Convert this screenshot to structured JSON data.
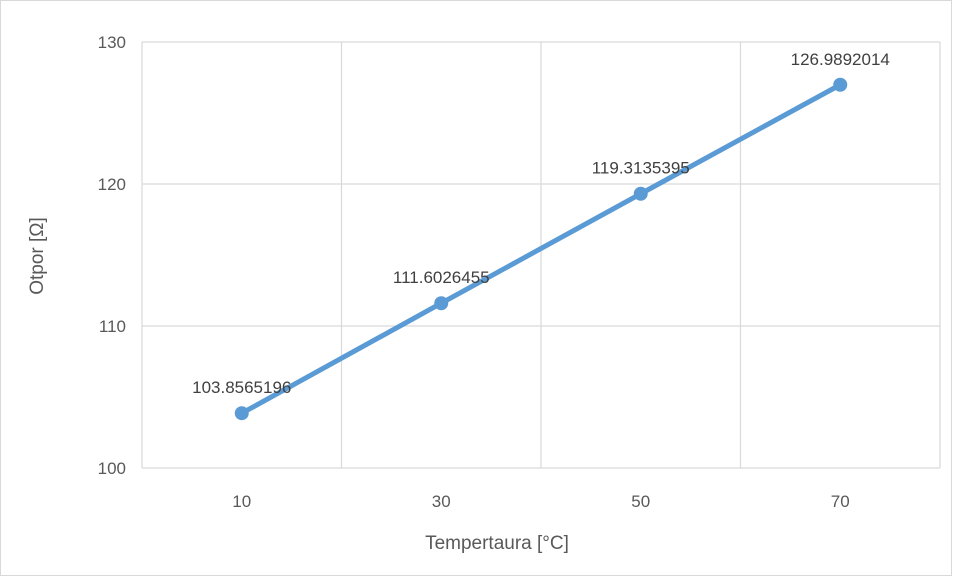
{
  "chart_data": {
    "type": "line",
    "x": [
      10,
      30,
      50,
      70
    ],
    "series": [
      {
        "name": "",
        "values": [
          103.8565196,
          111.6026455,
          119.3135395,
          126.9892014
        ],
        "data_labels": [
          "103.8565196",
          "111.6026455",
          "119.3135395",
          "126.9892014"
        ],
        "color": "#5b9bd5"
      }
    ],
    "title": "",
    "xlabel": "Tempertaura [°C]",
    "ylabel": "Otpor [Ω]",
    "xlim": [
      0,
      80
    ],
    "ylim": [
      100,
      130
    ],
    "x_ticks": [
      10,
      30,
      50,
      70
    ],
    "x_tick_labels": [
      "10",
      "30",
      "50",
      "70"
    ],
    "y_ticks": [
      100,
      110,
      120,
      130
    ],
    "y_tick_labels": [
      "100",
      "110",
      "120",
      "130"
    ],
    "x_gridlines": [
      0,
      20,
      40,
      60,
      80
    ],
    "grid": true,
    "legend": "none",
    "colors": {
      "line": "#5b9bd5",
      "grid": "#d9d9d9",
      "text": "#595959",
      "label_text": "#404040"
    }
  }
}
